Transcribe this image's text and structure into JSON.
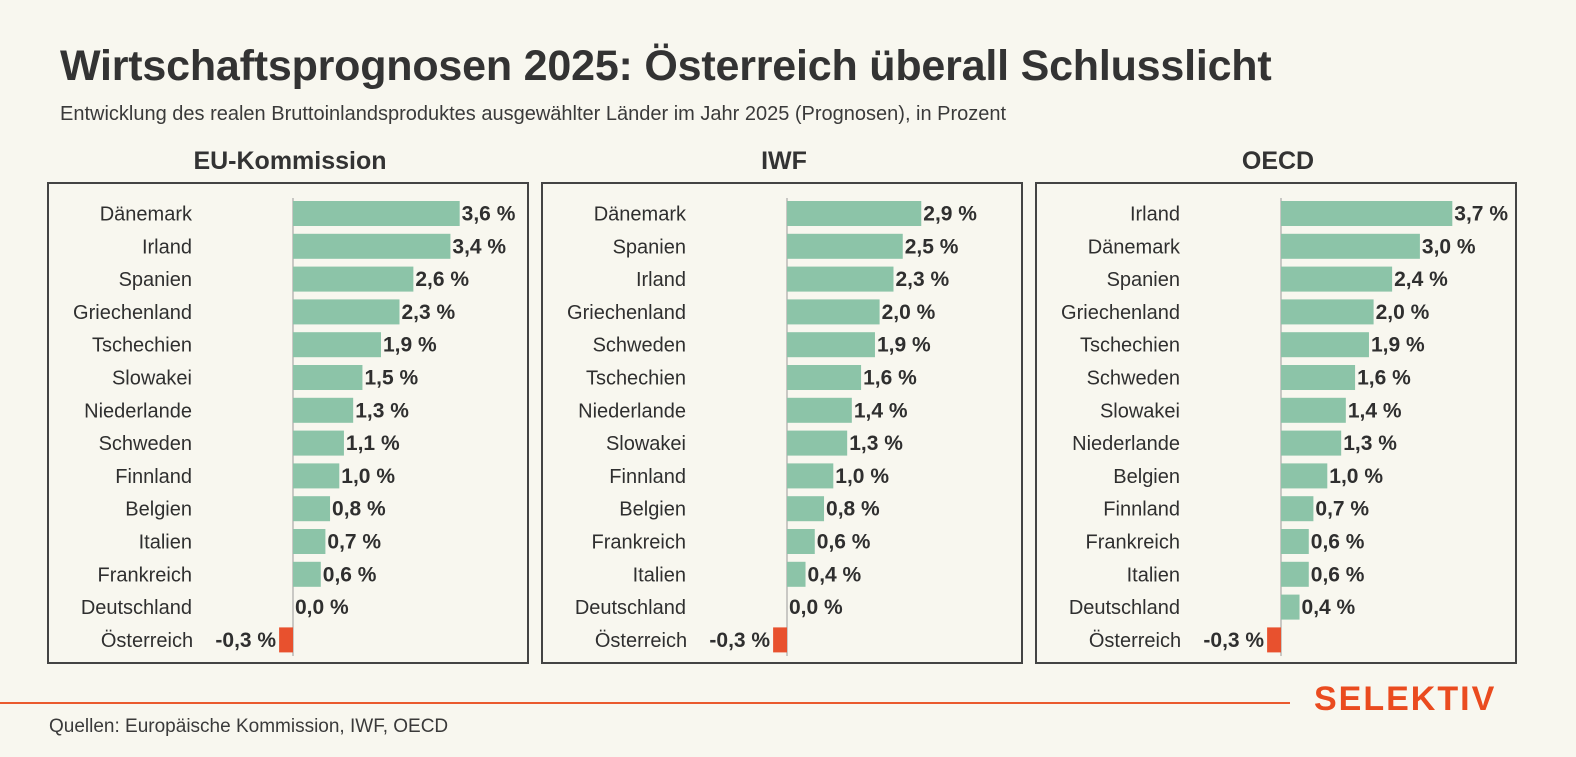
{
  "header": {
    "title": "Wirtschaftsprognosen 2025: Österreich überall Schlusslicht",
    "subtitle": "Entwicklung des realen Bruttoinlandsproduktes ausgewählter Länder im Jahr 2025 (Prognosen), in Prozent"
  },
  "footer": {
    "source": "Quellen: Europäische Kommission, IWF, OECD",
    "brand": "SELEKTIV"
  },
  "colors": {
    "positive": "#8cc4a8",
    "negative": "#e8512e",
    "accent": "#ea5a2e"
  },
  "chart_data": [
    {
      "type": "bar",
      "orientation": "horizontal",
      "title": "EU-Kommission",
      "categories": [
        "Dänemark",
        "Irland",
        "Spanien",
        "Griechenland",
        "Tschechien",
        "Slowakei",
        "Niederlande",
        "Schweden",
        "Finnland",
        "Belgien",
        "Italien",
        "Frankreich",
        "Deutschland",
        "Österreich"
      ],
      "values": [
        3.6,
        3.4,
        2.6,
        2.3,
        1.9,
        1.5,
        1.3,
        1.1,
        1.0,
        0.8,
        0.7,
        0.6,
        0.0,
        -0.3
      ],
      "labels": [
        "3,6 %",
        "3,4 %",
        "2,6 %",
        "2,3 %",
        "1,9 %",
        "1,5 %",
        "1,3 %",
        "1,1 %",
        "1,0 %",
        "0,8 %",
        "0,7 %",
        "0,6 %",
        "0,0 %",
        "-0,3 %"
      ],
      "xlim": [
        -0.3,
        3.7
      ]
    },
    {
      "type": "bar",
      "orientation": "horizontal",
      "title": "IWF",
      "categories": [
        "Dänemark",
        "Spanien",
        "Irland",
        "Griechenland",
        "Schweden",
        "Tschechien",
        "Niederlande",
        "Slowakei",
        "Finnland",
        "Belgien",
        "Frankreich",
        "Italien",
        "Deutschland",
        "Österreich"
      ],
      "values": [
        2.9,
        2.5,
        2.3,
        2.0,
        1.9,
        1.6,
        1.4,
        1.3,
        1.0,
        0.8,
        0.6,
        0.4,
        0.0,
        -0.3
      ],
      "labels": [
        "2,9 %",
        "2,5 %",
        "2,3 %",
        "2,0 %",
        "1,9 %",
        "1,6 %",
        "1,4 %",
        "1,3 %",
        "1,0 %",
        "0,8 %",
        "0,6 %",
        "0,4 %",
        "0,0 %",
        "-0,3 %"
      ],
      "xlim": [
        -0.3,
        3.7
      ]
    },
    {
      "type": "bar",
      "orientation": "horizontal",
      "title": "OECD",
      "categories": [
        "Irland",
        "Dänemark",
        "Spanien",
        "Griechenland",
        "Tschechien",
        "Schweden",
        "Slowakei",
        "Niederlande",
        "Belgien",
        "Finnland",
        "Frankreich",
        "Italien",
        "Deutschland",
        "Österreich"
      ],
      "values": [
        3.7,
        3.0,
        2.4,
        2.0,
        1.9,
        1.6,
        1.4,
        1.3,
        1.0,
        0.7,
        0.6,
        0.6,
        0.4,
        -0.3
      ],
      "labels": [
        "3,7 %",
        "3,0 %",
        "2,4 %",
        "2,0 %",
        "1,9 %",
        "1,6 %",
        "1,4 %",
        "1,3 %",
        "1,0 %",
        "0,7 %",
        "0,6 %",
        "0,6 %",
        "0,4 %",
        "-0,3 %"
      ],
      "xlim": [
        -0.3,
        3.7
      ]
    }
  ]
}
